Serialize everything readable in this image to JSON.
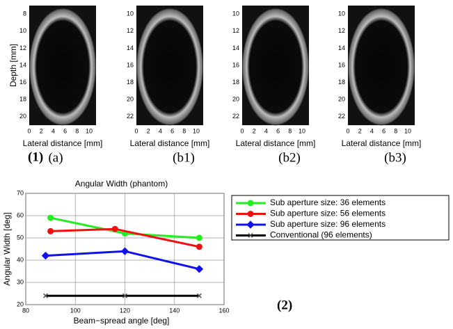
{
  "panels": [
    {
      "label": "(a)",
      "xticks": [
        0,
        2,
        4,
        6,
        8,
        10
      ],
      "yticks": [
        8,
        10,
        12,
        14,
        16,
        18,
        20
      ],
      "xlabel": "Lateral distance [mm]",
      "ylabel": "Depth [mm]"
    },
    {
      "label": "(b1)",
      "xticks": [
        0,
        2,
        4,
        6,
        8,
        10
      ],
      "yticks": [
        10,
        12,
        14,
        16,
        18,
        20,
        22
      ],
      "xlabel": "Lateral distance [mm]"
    },
    {
      "label": "(b2)",
      "xticks": [
        0,
        2,
        4,
        6,
        8,
        10
      ],
      "yticks": [
        10,
        12,
        14,
        16,
        18,
        20,
        22
      ],
      "xlabel": "Lateral distance [mm]"
    },
    {
      "label": "(b3)",
      "xticks": [
        0,
        2,
        4,
        6,
        8,
        10
      ],
      "yticks": [
        10,
        12,
        14,
        16,
        18,
        20,
        22
      ],
      "xlabel": "Lateral distance [mm]"
    }
  ],
  "figure_labels": {
    "part1": "(1)",
    "part2": "(2)"
  },
  "chart_data": {
    "type": "line",
    "title": "Angular Width (phantom)",
    "x_label": "Beam−spread angle [deg]",
    "y_label": "Angular Width [deg]",
    "xlim": [
      80,
      160
    ],
    "xticks": [
      80,
      100,
      120,
      140,
      160
    ],
    "ylim": [
      20,
      70
    ],
    "yticks": [
      20,
      30,
      40,
      50,
      60,
      70
    ],
    "grid": true,
    "legend": "outside-right",
    "series": [
      {
        "name": "Sub aperture size: 36 elements",
        "color": "#22ee22",
        "marker": "circle",
        "x": [
          90,
          120,
          150
        ],
        "values": [
          59,
          52,
          50
        ]
      },
      {
        "name": "Sub aperture size: 56 elements",
        "color": "#ee1111",
        "marker": "circle",
        "x": [
          90,
          116,
          150
        ],
        "values": [
          53,
          54,
          46
        ]
      },
      {
        "name": "Sub aperture size: 96 elements",
        "color": "#1111ee",
        "marker": "diamond",
        "x": [
          88,
          120,
          150
        ],
        "values": [
          42,
          44,
          36
        ]
      },
      {
        "name": "Conventional (96 elements)",
        "color": "#000000",
        "marker": "cross",
        "x": [
          88,
          120,
          150
        ],
        "values": [
          24,
          24,
          24
        ]
      }
    ]
  }
}
